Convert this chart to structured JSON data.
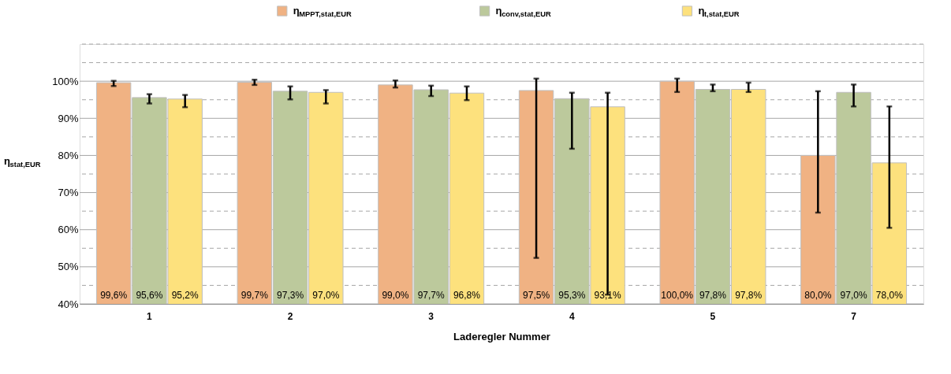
{
  "chart_data": {
    "type": "bar",
    "xlabel": "Laderegler Nummer",
    "ylabel": "η$_{stat,EUR}$",
    "categories": [
      "1",
      "2",
      "3",
      "4",
      "5",
      "7"
    ],
    "series": [
      {
        "name": "η$_{MPPT,stat,EUR}$",
        "color": "#f0b283",
        "values": [
          99.6,
          99.7,
          99.0,
          97.5,
          100.0,
          80.0
        ],
        "value_labels": [
          "99,6%",
          "99,7%",
          "99,0%",
          "97,5%",
          "100,0%",
          "80,0%"
        ],
        "errors": [
          [
            98.7,
            100.1
          ],
          [
            99.0,
            100.4
          ],
          [
            98.3,
            100.2
          ],
          [
            52.4,
            100.7
          ],
          [
            97.1,
            100.7
          ],
          [
            64.6,
            97.3
          ]
        ]
      },
      {
        "name": "η$_{conv,stat,EUR}$",
        "color": "#bcc99c",
        "values": [
          95.6,
          97.3,
          97.7,
          95.3,
          97.8,
          97.0
        ],
        "value_labels": [
          "95,6%",
          "97,3%",
          "97,7%",
          "95,3%",
          "97,8%",
          "97,0%"
        ],
        "errors": [
          [
            94.0,
            96.5
          ],
          [
            95.1,
            98.6
          ],
          [
            96.0,
            98.8
          ],
          [
            81.8,
            96.9
          ],
          [
            97.3,
            99.1
          ],
          [
            93.2,
            99.1
          ]
        ]
      },
      {
        "name": "η$_{t,stat,EUR}$",
        "color": "#fde17d",
        "values": [
          95.2,
          97.0,
          96.8,
          93.1,
          97.8,
          78.0
        ],
        "value_labels": [
          "95,2%",
          "97,0%",
          "96,8%",
          "93,1%",
          "97,8%",
          "78,0%"
        ],
        "errors": [
          [
            93.0,
            96.3
          ],
          [
            94.0,
            97.6
          ],
          [
            94.9,
            98.6
          ],
          [
            42.5,
            96.9
          ],
          [
            97.1,
            99.6
          ],
          [
            60.5,
            93.2
          ]
        ]
      }
    ],
    "ylim": [
      40,
      110
    ],
    "yticks": [
      {
        "value": 40,
        "label": "40%"
      },
      {
        "value": 45,
        "label": null
      },
      {
        "value": 50,
        "label": "50%"
      },
      {
        "value": 55,
        "label": null
      },
      {
        "value": 60,
        "label": "60%"
      },
      {
        "value": 65,
        "label": null
      },
      {
        "value": 70,
        "label": "70%"
      },
      {
        "value": 75,
        "label": null
      },
      {
        "value": 80,
        "label": "80%"
      },
      {
        "value": 85,
        "label": null
      },
      {
        "value": 90,
        "label": "90%"
      },
      {
        "value": 95,
        "label": null
      },
      {
        "value": 100,
        "label": "100%"
      },
      {
        "value": 105,
        "label": null
      },
      {
        "value": 110,
        "label": null
      }
    ],
    "grid": true,
    "legend": "top"
  }
}
